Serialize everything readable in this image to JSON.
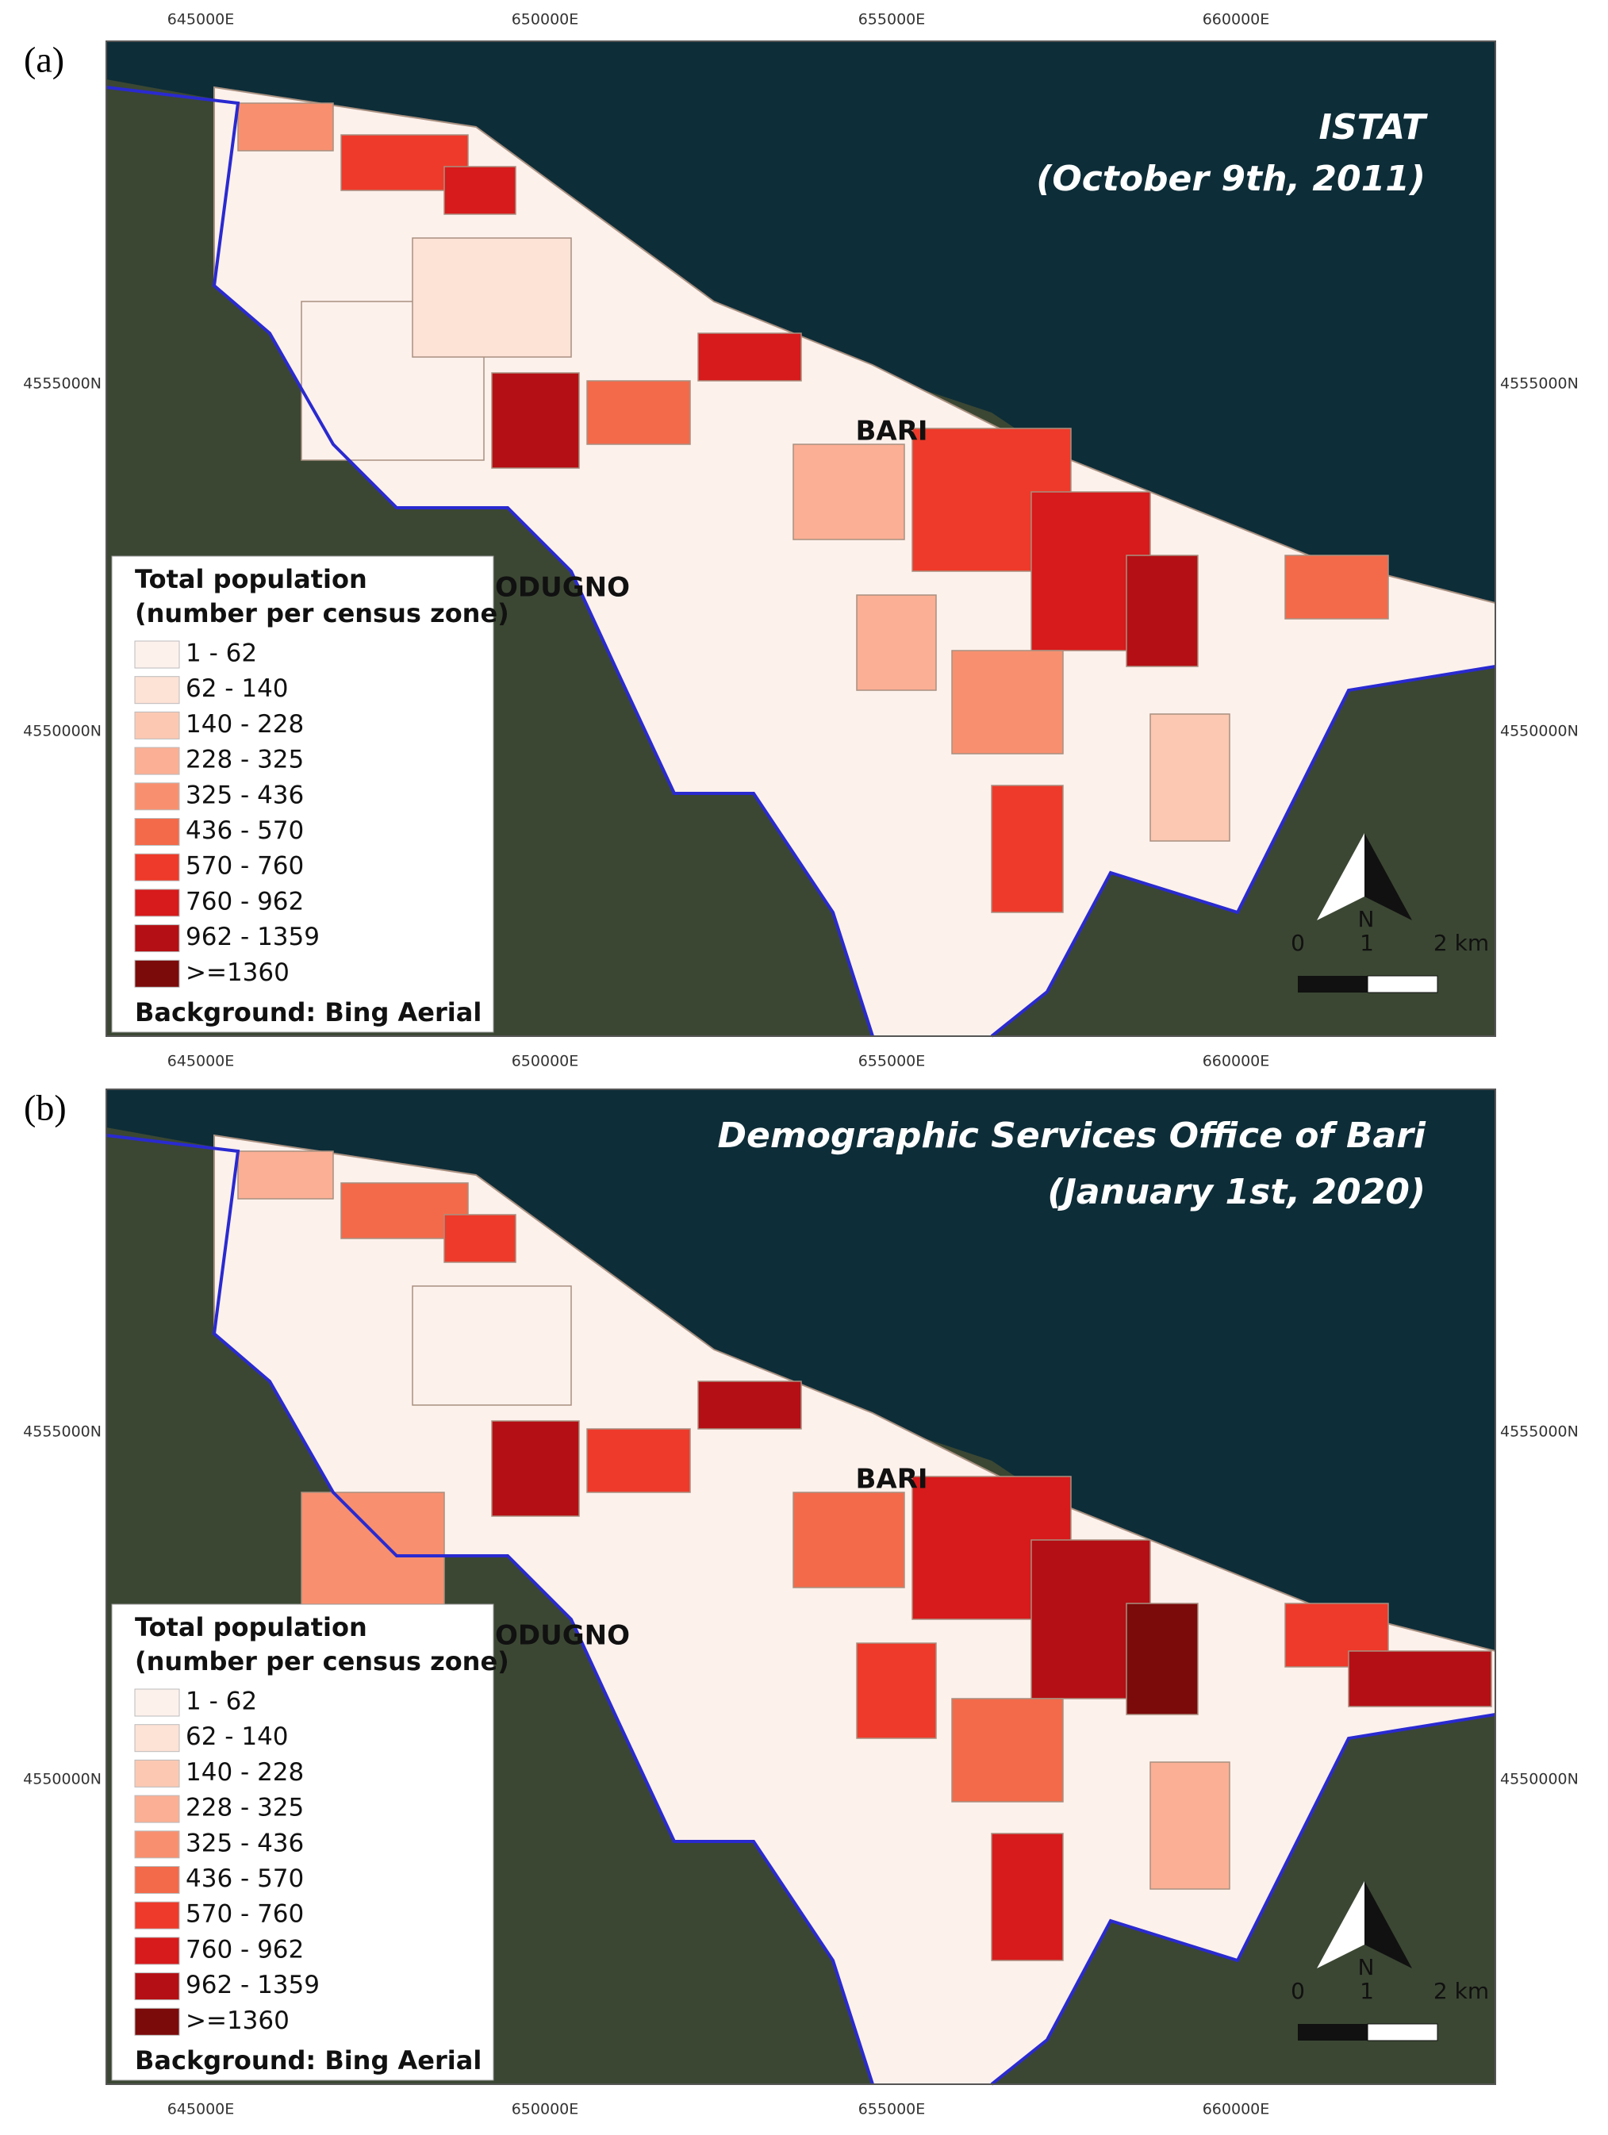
{
  "panels": [
    {
      "label": "(a)",
      "title": [
        "ISTAT",
        "(October 9th,  2011)"
      ],
      "x_labels_top": [
        "645000E",
        "650000E",
        "655000E",
        "660000E"
      ],
      "x_labels_bottom": [
        "645000E",
        "650000E",
        "655000E",
        "660000E"
      ],
      "y_labels": [
        "4555000N",
        "4550000N"
      ],
      "places": [
        "BARI",
        "ODUGNO"
      ],
      "legend": {
        "title": [
          "Total population",
          "(number per census zone)"
        ],
        "classes": [
          {
            "label": "1 - 62",
            "color": "#fdf1ec"
          },
          {
            "label": "62 - 140",
            "color": "#fde2d6"
          },
          {
            "label": "140 - 228",
            "color": "#fcc8b2"
          },
          {
            "label": "228 - 325",
            "color": "#fbaf94"
          },
          {
            "label": "325 - 436",
            "color": "#f8906f"
          },
          {
            "label": "436 - 570",
            "color": "#f36a4a"
          },
          {
            "label": "570 - 760",
            "color": "#ee3a2a"
          },
          {
            "label": "760 - 962",
            "color": "#d71a1b"
          },
          {
            "label": "962 - 1359",
            "color": "#b40f14"
          },
          {
            "label": ">=1360",
            "color": "#7b0a0a"
          }
        ],
        "note": "Background: Bing Aerial"
      },
      "north": "N",
      "scale": [
        "0",
        "1",
        "2 km"
      ]
    },
    {
      "label": "(b)",
      "title": [
        "Demographic Services Office of Bari",
        "(January 1st, 2020)"
      ],
      "x_labels_bottom": [
        "645000E",
        "650000E",
        "655000E",
        "660000E"
      ],
      "y_labels": [
        "4555000N",
        "4550000N"
      ],
      "places": [
        "BARI",
        "ODUGNO"
      ],
      "legend": {
        "title": [
          "Total population",
          "(number per census zone)"
        ],
        "classes": [
          {
            "label": "1 - 62",
            "color": "#fdf1ec"
          },
          {
            "label": "62 - 140",
            "color": "#fde2d6"
          },
          {
            "label": "140 - 228",
            "color": "#fcc8b2"
          },
          {
            "label": "228 - 325",
            "color": "#fbaf94"
          },
          {
            "label": "325 - 436",
            "color": "#f8906f"
          },
          {
            "label": "436 - 570",
            "color": "#f36a4a"
          },
          {
            "label": "570 - 760",
            "color": "#ee3a2a"
          },
          {
            "label": "760 - 962",
            "color": "#d71a1b"
          },
          {
            "label": "962 - 1359",
            "color": "#b40f14"
          },
          {
            "label": ">=1360",
            "color": "#7b0a0a"
          }
        ],
        "note": "Background: Bing Aerial"
      },
      "north": "N",
      "scale": [
        "0",
        "1",
        "2 km"
      ]
    }
  ]
}
